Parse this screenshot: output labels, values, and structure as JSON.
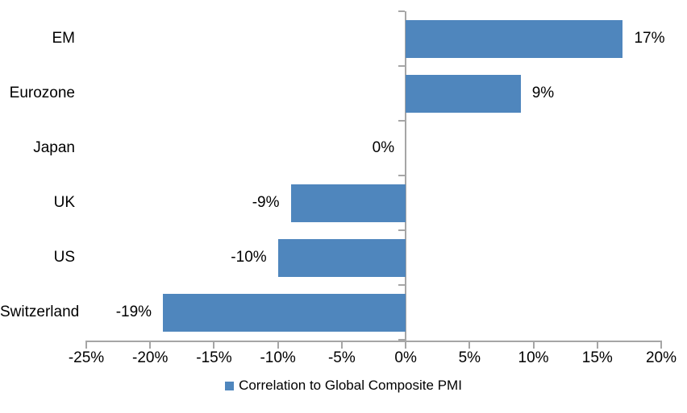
{
  "chart_data": {
    "type": "bar",
    "orientation": "horizontal",
    "title": "",
    "categories": [
      "EM",
      "Eurozone",
      "Japan",
      "UK",
      "US",
      "Switzerland"
    ],
    "series": [
      {
        "name": "Correlation to Global Composite PMI",
        "values": [
          17,
          9,
          0,
          -9,
          -10,
          -19
        ]
      }
    ],
    "value_labels": [
      "17%",
      "9%",
      "0%",
      "-9%",
      "-10%",
      "-19%"
    ],
    "xlim": [
      -25,
      20
    ],
    "xticks": [
      -25,
      -20,
      -15,
      -10,
      -5,
      0,
      5,
      10,
      15,
      20
    ],
    "xtick_labels": [
      "-25%",
      "-20%",
      "-15%",
      "-10%",
      "-5%",
      "0%",
      "5%",
      "10%",
      "15%",
      "20%"
    ],
    "grid": false,
    "legend": {
      "position": "bottom-center",
      "entries": [
        {
          "label": "Correlation to Global Composite PMI",
          "swatch": "square"
        }
      ]
    },
    "colors": {
      "bar": "#4F86BD",
      "axis": "#A6A6A6",
      "text": "#000000",
      "background": "#FFFFFF"
    }
  }
}
